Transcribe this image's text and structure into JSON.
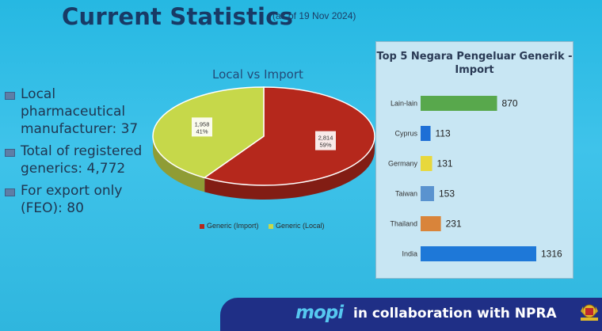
{
  "header": {
    "title": "Current Statistics",
    "subtitle": "(as of 19 Nov 2024)"
  },
  "bullets": [
    "Local pharmaceutical manufacturer: 37",
    "Total of registered generics: 4,772",
    "For export only (FEO): 80"
  ],
  "chart_data": [
    {
      "type": "pie",
      "title": "Local vs Import",
      "slices": [
        {
          "name": "Generic (Import)",
          "value": 2814,
          "value_label": "2,814",
          "percent": "59%",
          "color": "#b5281c"
        },
        {
          "name": "Generic (Local)",
          "value": 1958,
          "value_label": "1,958",
          "percent": "41%",
          "color": "#c6d84a"
        }
      ],
      "legend": "bottom"
    },
    {
      "type": "bar",
      "orientation": "horizontal",
      "title": "Top 5 Negara Pengeluar Generik - Import",
      "categories": [
        "Lain-lain",
        "Cyprus",
        "Germany",
        "Taiwan",
        "Thailand",
        "India"
      ],
      "values": [
        870,
        113,
        131,
        153,
        231,
        1316
      ],
      "colors": [
        "#58a84c",
        "#1e6fd6",
        "#e8d83c",
        "#5a93cf",
        "#d9843a",
        "#1e78d8"
      ],
      "xlim": [
        0,
        1316
      ]
    }
  ],
  "footer": {
    "logo_text": "mopi",
    "text": "in collaboration with NPRA",
    "crest_icon": "malaysia-coat-of-arms-icon",
    "background": "#1f2f86"
  }
}
